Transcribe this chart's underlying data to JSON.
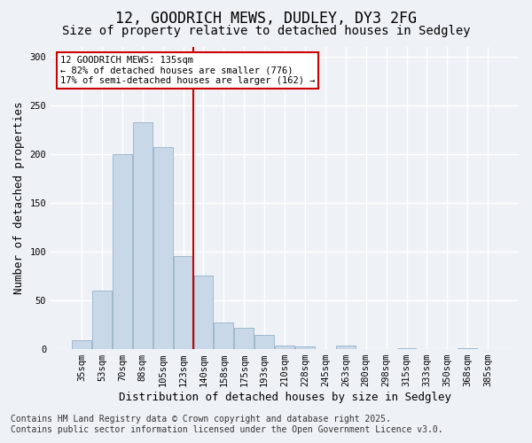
{
  "title_line1": "12, GOODRICH MEWS, DUDLEY, DY3 2FG",
  "title_line2": "Size of property relative to detached houses in Sedgley",
  "xlabel": "Distribution of detached houses by size in Sedgley",
  "ylabel": "Number of detached properties",
  "bar_color": "#c8d8e8",
  "bar_edge_color": "#a0b8cc",
  "background_color": "#eef2f7",
  "grid_color": "#ffffff",
  "bins": [
    "35sqm",
    "53sqm",
    "70sqm",
    "88sqm",
    "105sqm",
    "123sqm",
    "140sqm",
    "158sqm",
    "175sqm",
    "193sqm",
    "210sqm",
    "228sqm",
    "245sqm",
    "263sqm",
    "280sqm",
    "298sqm",
    "315sqm",
    "333sqm",
    "350sqm",
    "368sqm",
    "385sqm"
  ],
  "values": [
    9,
    60,
    200,
    232,
    207,
    95,
    75,
    27,
    22,
    15,
    4,
    3,
    0,
    4,
    0,
    0,
    1,
    0,
    0,
    1,
    0
  ],
  "property_line_x": 5.5,
  "property_size": "135sqm",
  "annotation_text": "12 GOODRICH MEWS: 135sqm\n← 82% of detached houses are smaller (776)\n17% of semi-detached houses are larger (162) →",
  "annotation_box_color": "#ffffff",
  "annotation_border_color": "#cc0000",
  "vline_color": "#cc0000",
  "ylim": [
    0,
    310
  ],
  "footer_line1": "Contains HM Land Registry data © Crown copyright and database right 2025.",
  "footer_line2": "Contains public sector information licensed under the Open Government Licence v3.0.",
  "title_fontsize": 12,
  "subtitle_fontsize": 10,
  "axis_fontsize": 9,
  "tick_fontsize": 7.5,
  "footer_fontsize": 7
}
